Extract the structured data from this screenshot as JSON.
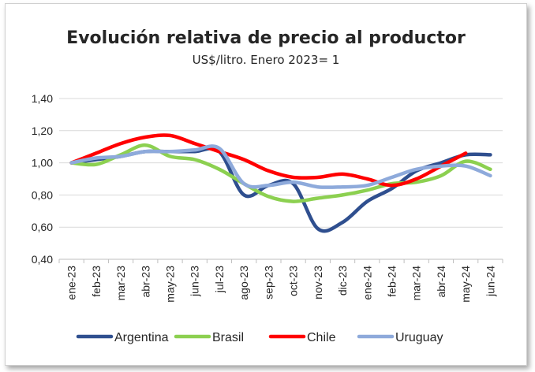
{
  "chart_data": {
    "type": "line",
    "title": "Evolución relativa de precio al productor",
    "subtitle": "US$/litro. Enero 2023= 1",
    "x": [
      "ene-23",
      "feb-23",
      "mar-23",
      "abr-23",
      "may-23",
      "jun-23",
      "jul-23",
      "ago-23",
      "sep-23",
      "oct-23",
      "nov-23",
      "dic-23",
      "ene-24",
      "feb-24",
      "mar-24",
      "abr-24",
      "may-24",
      "jun-24"
    ],
    "yticks": [
      "0,40",
      "0,60",
      "0,80",
      "1,00",
      "1,20",
      "1,40"
    ],
    "ylim": [
      0.4,
      1.4
    ],
    "grid": true,
    "legend_position": "bottom",
    "series": [
      {
        "name": "Argentina",
        "color": "#2f4f8f",
        "values": [
          1.0,
          1.02,
          1.04,
          1.07,
          1.07,
          1.07,
          1.07,
          0.8,
          0.86,
          0.87,
          0.59,
          0.63,
          0.76,
          0.84,
          0.95,
          1.0,
          1.05,
          1.05
        ]
      },
      {
        "name": "Brasil",
        "color": "#8cd050",
        "values": [
          1.0,
          0.99,
          1.05,
          1.11,
          1.04,
          1.02,
          0.96,
          0.87,
          0.79,
          0.76,
          0.78,
          0.8,
          0.83,
          0.87,
          0.88,
          0.92,
          1.01,
          0.96
        ]
      },
      {
        "name": "Chile",
        "color": "#ff0000",
        "values": [
          1.0,
          1.06,
          1.12,
          1.16,
          1.17,
          1.12,
          1.07,
          1.02,
          0.95,
          0.91,
          0.91,
          0.93,
          0.9,
          0.86,
          0.9,
          0.98,
          1.06,
          null
        ]
      },
      {
        "name": "Uruguay",
        "color": "#8eaadb",
        "values": [
          1.0,
          1.03,
          1.04,
          1.07,
          1.07,
          1.08,
          1.09,
          0.87,
          0.86,
          0.88,
          0.85,
          0.85,
          0.86,
          0.91,
          0.96,
          0.98,
          0.98,
          0.92
        ]
      }
    ]
  }
}
